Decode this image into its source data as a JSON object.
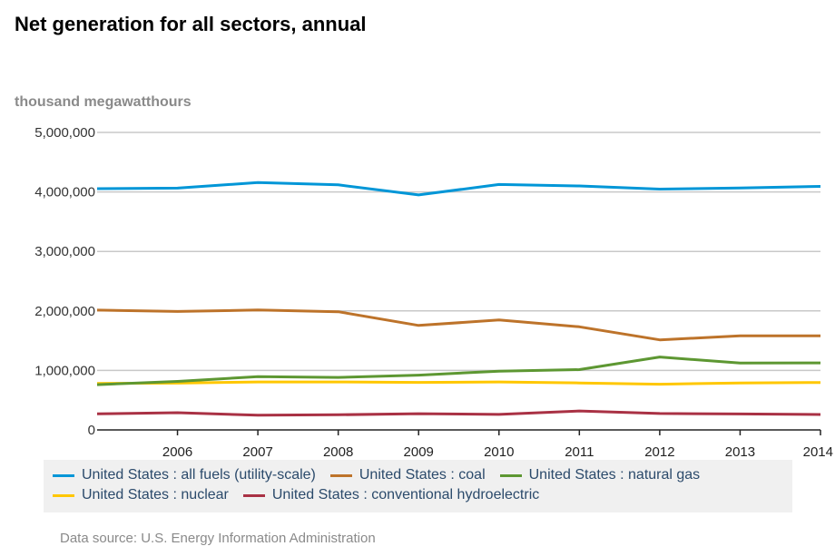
{
  "header": {
    "title": "Net generation for all sectors, annual",
    "units": "thousand megawatthours"
  },
  "footer": {
    "source": "Data source: U.S. Energy Information Administration"
  },
  "chart_data": {
    "type": "line",
    "title": "Net generation for all sectors, annual",
    "xlabel": "",
    "ylabel": "thousand megawatthours",
    "x": [
      2005,
      2006,
      2007,
      2008,
      2009,
      2010,
      2011,
      2012,
      2013,
      2014
    ],
    "x_tick_labels": [
      "2006",
      "2007",
      "2008",
      "2009",
      "2010",
      "2011",
      "2012",
      "2013",
      "2014"
    ],
    "x_tick_values": [
      2006,
      2007,
      2008,
      2009,
      2010,
      2011,
      2012,
      2013,
      2014
    ],
    "y_tick_labels": [
      "0",
      "1,000,000",
      "2,000,000",
      "3,000,000",
      "4,000,000",
      "5,000,000"
    ],
    "y_tick_values": [
      0,
      1000000,
      2000000,
      3000000,
      4000000,
      5000000
    ],
    "xlim": [
      2005,
      2014
    ],
    "ylim": [
      0,
      5000000
    ],
    "grid": true,
    "legend_position": "bottom",
    "series": [
      {
        "name": "United States : all fuels (utility-scale)",
        "color": "#0096d7",
        "values": [
          4055000,
          4064000,
          4157000,
          4119000,
          3950000,
          4125000,
          4100000,
          4048000,
          4066000,
          4093000
        ]
      },
      {
        "name": "United States : coal",
        "color": "#bd732a",
        "values": [
          2013000,
          1991000,
          2016000,
          1986000,
          1756000,
          1847000,
          1733000,
          1514000,
          1581000,
          1581000
        ]
      },
      {
        "name": "United States : natural gas",
        "color": "#5d9732",
        "values": [
          761000,
          816000,
          897000,
          883000,
          921000,
          988000,
          1014000,
          1225000,
          1124000,
          1127000
        ]
      },
      {
        "name": "United States : nuclear",
        "color": "#ffc700",
        "values": [
          782000,
          787000,
          806000,
          806000,
          799000,
          807000,
          790000,
          769000,
          789000,
          797000
        ]
      },
      {
        "name": "United States : conventional hydroelectric",
        "color": "#a93144",
        "values": [
          270000,
          289000,
          247000,
          254000,
          273000,
          260000,
          319000,
          276000,
          269000,
          259000
        ]
      }
    ]
  }
}
